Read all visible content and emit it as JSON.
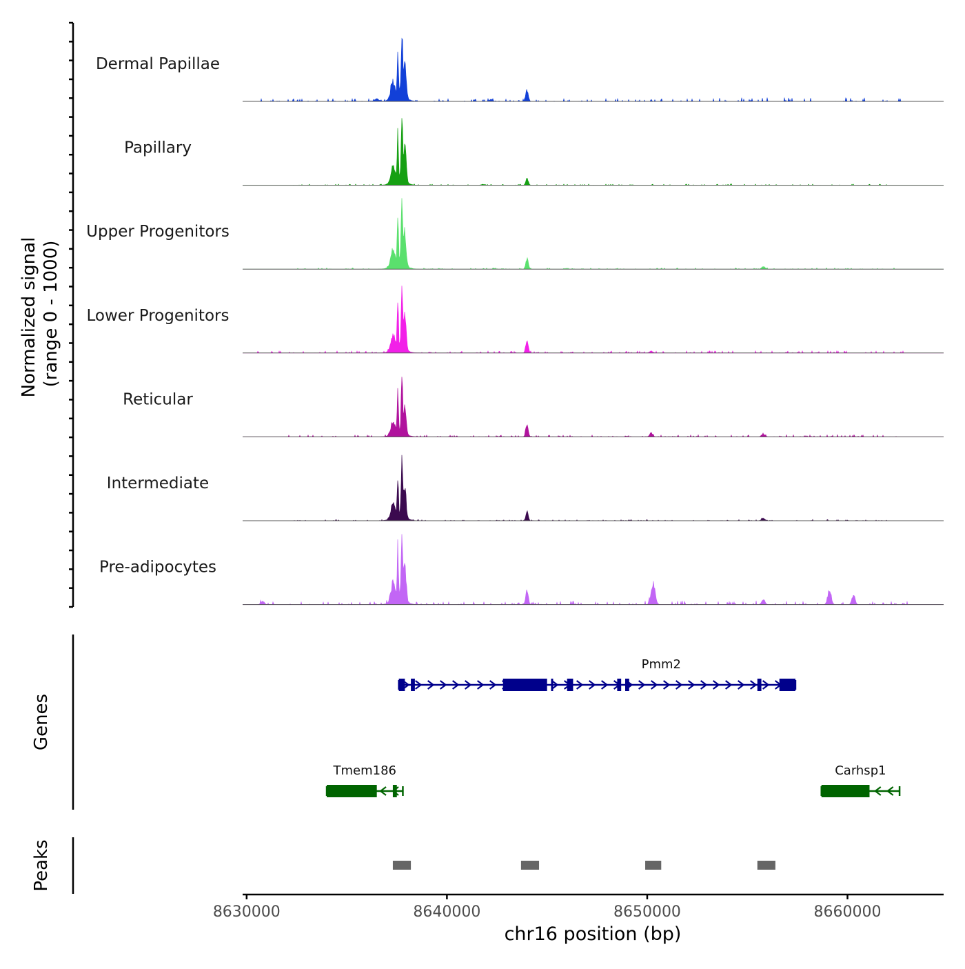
{
  "chart_data": {
    "type": "area",
    "ylabel_line1": "Normalized signal",
    "ylabel_line2": "(range 0 - 1000)",
    "xlabel": "chr16 position (bp)",
    "xlim": [
      8629800,
      8664800
    ],
    "xticks": [
      8630000,
      8640000,
      8650000,
      8660000
    ],
    "xtick_labels": [
      "8630000",
      "8640000",
      "8650000",
      "8660000"
    ],
    "tracks": [
      {
        "name": "Dermal Papillae",
        "color": "#1240d8",
        "main_peak": 100,
        "side_peaks": [
          {
            "x": 8644000,
            "h": 17,
            "w": 90
          },
          {
            "x": 8642200,
            "h": 3,
            "w": 120
          },
          {
            "x": 8636500,
            "h": 4,
            "w": 140
          }
        ],
        "noise": 2.5,
        "noise_start": 8630500,
        "noise_end": 8663000,
        "tail_boost": [
          8653000,
          8662500,
          3.5
        ]
      },
      {
        "name": "Papillary",
        "color": "#16a013",
        "main_peak": 97,
        "side_peaks": [
          {
            "x": 8644000,
            "h": 10,
            "w": 90
          },
          {
            "x": 8641800,
            "h": 1.5,
            "w": 120
          }
        ],
        "noise": 1.0,
        "noise_start": 8632000,
        "noise_end": 8662500,
        "tail_boost": [
          8654000,
          8660000,
          1.5
        ]
      },
      {
        "name": "Upper Progenitors",
        "color": "#5ae06d",
        "main_peak": 98,
        "side_peaks": [
          {
            "x": 8644000,
            "h": 16,
            "w": 90
          },
          {
            "x": 8655800,
            "h": 4,
            "w": 120
          }
        ],
        "noise": 1.0,
        "noise_start": 8632000,
        "noise_end": 8662500,
        "tail_boost": [
          8654000,
          8660000,
          1.2
        ]
      },
      {
        "name": "Lower Progenitors",
        "color": "#f220e8",
        "main_peak": 92,
        "side_peaks": [
          {
            "x": 8644000,
            "h": 20,
            "w": 90
          },
          {
            "x": 8650200,
            "h": 3,
            "w": 120
          }
        ],
        "noise": 1.8,
        "noise_start": 8630500,
        "noise_end": 8663000,
        "tail_boost": [
          8652000,
          8662000,
          2.0
        ]
      },
      {
        "name": "Reticular",
        "color": "#b0139d",
        "main_peak": 78,
        "side_peaks": [
          {
            "x": 8644000,
            "h": 17,
            "w": 90
          },
          {
            "x": 8650200,
            "h": 6,
            "w": 110
          },
          {
            "x": 8655800,
            "h": 4,
            "w": 120
          }
        ],
        "noise": 1.6,
        "noise_start": 8632000,
        "noise_end": 8662500,
        "tail_boost": [
          8652000,
          8662000,
          2.0
        ]
      },
      {
        "name": "Intermediate",
        "color": "#3b0a4f",
        "main_peak": 88,
        "side_peaks": [
          {
            "x": 8644000,
            "h": 14,
            "w": 80
          },
          {
            "x": 8655800,
            "h": 3,
            "w": 140
          }
        ],
        "noise": 0.9,
        "noise_start": 8632000,
        "noise_end": 8662000,
        "tail_boost": [
          8654000,
          8660000,
          1.2
        ]
      },
      {
        "name": "Pre-adipocytes",
        "color": "#c266f5",
        "main_peak": 105,
        "side_peaks": [
          {
            "x": 8644000,
            "h": 22,
            "w": 90
          },
          {
            "x": 8650300,
            "h": 32,
            "w": 140
          },
          {
            "x": 8655800,
            "h": 8,
            "w": 110
          },
          {
            "x": 8659100,
            "h": 22,
            "w": 120
          },
          {
            "x": 8660300,
            "h": 15,
            "w": 110
          },
          {
            "x": 8630800,
            "h": 5,
            "w": 120
          }
        ],
        "noise": 3.0,
        "noise_start": 8630500,
        "noise_end": 8663000,
        "tail_boost": [
          8648000,
          8662000,
          3.5
        ]
      }
    ],
    "genes": [
      {
        "name": "Pmm2",
        "strand": "+",
        "color": "#00008b",
        "row": 0,
        "start": 8637600,
        "end": 8657400,
        "exons": [
          [
            8637600,
            8637900
          ],
          [
            8638200,
            8638400
          ],
          [
            8642800,
            8645000
          ],
          [
            8645200,
            8645300
          ],
          [
            8646000,
            8646300
          ],
          [
            8648500,
            8648700
          ],
          [
            8648900,
            8649100
          ],
          [
            8655500,
            8655700
          ],
          [
            8656600,
            8657400
          ]
        ]
      },
      {
        "name": "Tmem186",
        "strand": "-",
        "color": "#006400",
        "row": 1,
        "start": 8634000,
        "end": 8637800,
        "exons": [
          [
            8634000,
            8636500
          ],
          [
            8637300,
            8637500
          ]
        ]
      },
      {
        "name": "Carhsp1",
        "strand": "-",
        "color": "#006400",
        "row": 1,
        "start": 8658700,
        "end": 8662600,
        "exons": [
          [
            8658700,
            8661100
          ]
        ]
      }
    ],
    "gene_track_label": "Genes",
    "peaks": [
      [
        8637300,
        8638200
      ],
      [
        8643700,
        8644600
      ],
      [
        8649900,
        8650700
      ],
      [
        8655500,
        8656400
      ]
    ],
    "peaks_track_label": "Peaks",
    "peak_color": "#666666"
  }
}
